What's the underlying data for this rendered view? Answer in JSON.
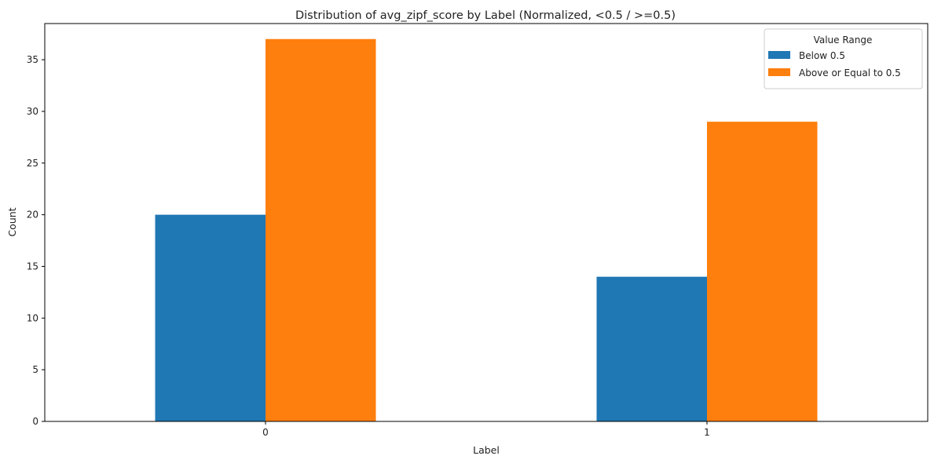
{
  "chart_data": {
    "type": "bar",
    "title": "Distribution of avg_zipf_score by Label (Normalized, <0.5 / >=0.5)",
    "xlabel": "Label",
    "ylabel": "Count",
    "categories": [
      "0",
      "1"
    ],
    "series": [
      {
        "name": "Below 0.5",
        "values": [
          20,
          14
        ],
        "color": "#1f77b4"
      },
      {
        "name": "Above or Equal to 0.5",
        "values": [
          37,
          29
        ],
        "color": "#ff7f0e"
      }
    ],
    "ylim": [
      0,
      38.5
    ],
    "yticks": [
      0,
      5,
      10,
      15,
      20,
      25,
      30,
      35
    ],
    "grid": false,
    "legend": {
      "title": "Value Range",
      "placement": "top-right"
    }
  }
}
